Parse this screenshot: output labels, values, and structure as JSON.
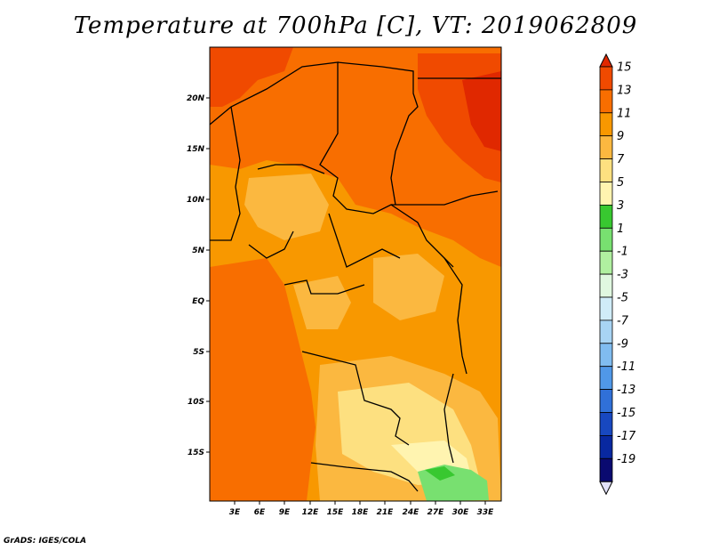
{
  "title": "Temperature at 700hPa [C], VT: 2019062809",
  "credit": "GrADS: IGES/COLA",
  "map": {
    "region": "Central and Western Africa",
    "variable": "Temperature at 700hPa",
    "units": "C",
    "valid_time": "2019062809",
    "lon_ticks": [
      "3E",
      "6E",
      "9E",
      "12E",
      "15E",
      "18E",
      "21E",
      "24E",
      "27E",
      "30E",
      "33E"
    ],
    "lat_ticks": [
      "20N",
      "15N",
      "10N",
      "5N",
      "EQ",
      "5S",
      "10S",
      "15S"
    ]
  },
  "colorbar": {
    "labels": [
      "15",
      "13",
      "11",
      "9",
      "7",
      "5",
      "3",
      "1",
      "-1",
      "-3",
      "-5",
      "-7",
      "-9",
      "-11",
      "-13",
      "-15",
      "-17",
      "-19"
    ],
    "colors": [
      "#e02800",
      "#f04a00",
      "#f86e00",
      "#f89800",
      "#fbb840",
      "#fde080",
      "#fff4b0",
      "#38c830",
      "#78e070",
      "#b0f0a0",
      "#e0f8e0",
      "#d0ecf8",
      "#a8d4f4",
      "#80bcf0",
      "#5098e8",
      "#3070d8",
      "#1848c0",
      "#0828a0",
      "#0a0a70",
      "#e0e0f8"
    ]
  },
  "chart_data": {
    "type": "heatmap",
    "title": "Temperature at 700hPa [C], VT: 2019062809",
    "x_ticks": [
      "3E",
      "6E",
      "9E",
      "12E",
      "15E",
      "18E",
      "21E",
      "24E",
      "27E",
      "30E",
      "33E"
    ],
    "y_ticks": [
      "20N",
      "15N",
      "10N",
      "5N",
      "EQ",
      "5S",
      "10S",
      "15S"
    ],
    "color_scale_levels": [
      15,
      13,
      11,
      9,
      7,
      5,
      3,
      1,
      -1,
      -3,
      -5,
      -7,
      -9,
      -11,
      -13,
      -15,
      -17,
      -19
    ]
  }
}
